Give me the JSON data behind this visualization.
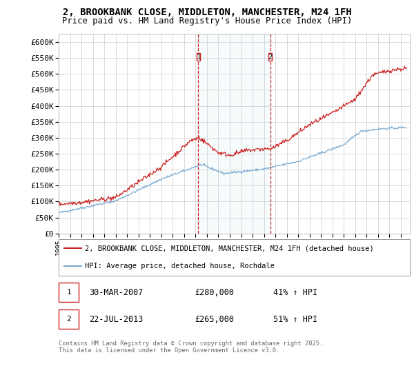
{
  "title_line1": "2, BROOKBANK CLOSE, MIDDLETON, MANCHESTER, M24 1FH",
  "title_line2": "Price paid vs. HM Land Registry's House Price Index (HPI)",
  "ylim": [
    0,
    625000
  ],
  "yticks": [
    0,
    50000,
    100000,
    150000,
    200000,
    250000,
    300000,
    350000,
    400000,
    450000,
    500000,
    550000,
    600000
  ],
  "ytick_labels": [
    "£0",
    "£50K",
    "£100K",
    "£150K",
    "£200K",
    "£250K",
    "£300K",
    "£350K",
    "£400K",
    "£450K",
    "£500K",
    "£550K",
    "£600K"
  ],
  "xlim_start": 1995.0,
  "xlim_end": 2025.8,
  "background_color": "#ffffff",
  "plot_bg_color": "#ffffff",
  "grid_color": "#cccccc",
  "hpi_color": "#7aaad0",
  "price_color": "#cc2222",
  "marker1_date": 2007.24,
  "marker2_date": 2013.55,
  "marker1_label": "1",
  "marker2_label": "2",
  "legend_label1": "2, BROOKBANK CLOSE, MIDDLETON, MANCHESTER, M24 1FH (detached house)",
  "legend_label2": "HPI: Average price, detached house, Rochdale",
  "footer": "Contains HM Land Registry data © Crown copyright and database right 2025.\nThis data is licensed under the Open Government Licence v3.0."
}
